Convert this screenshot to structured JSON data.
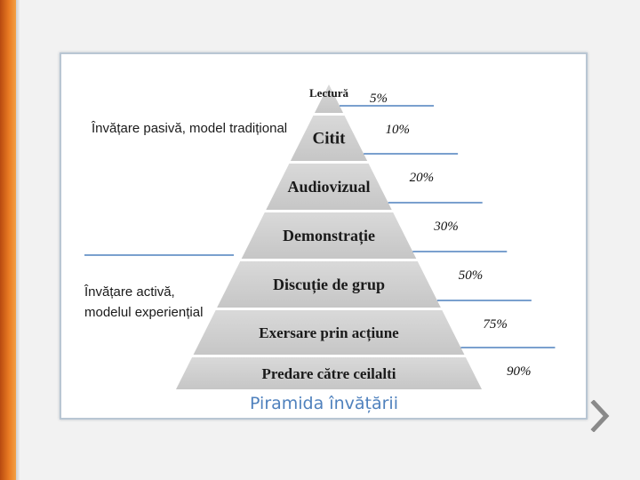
{
  "diagram": {
    "tiers": [
      {
        "label": "Lectură",
        "percent": "5%"
      },
      {
        "label": "Citit",
        "percent": "10%"
      },
      {
        "label": "Audiovizual",
        "percent": "20%"
      },
      {
        "label": "Demonstrație",
        "percent": "30%"
      },
      {
        "label": "Discuție de grup",
        "percent": "50%"
      },
      {
        "label": "Exersare prin acțiune",
        "percent": "75%"
      },
      {
        "label": "Predare către ceilalti",
        "percent": "90%"
      }
    ],
    "passive_label": "Învățare pasivă, model tradițional",
    "active_label_line1": "Învățare activă,",
    "active_label_line2": "modelul experiențial",
    "caption": "Piramida învățării"
  },
  "colors": {
    "accent_bar": "#e97a22",
    "pyramid_fill": "#cfcfcf",
    "line_color": "#4f81bd",
    "caption_color": "#4f81bd"
  },
  "icons": {
    "next": "chevron-right-icon"
  }
}
